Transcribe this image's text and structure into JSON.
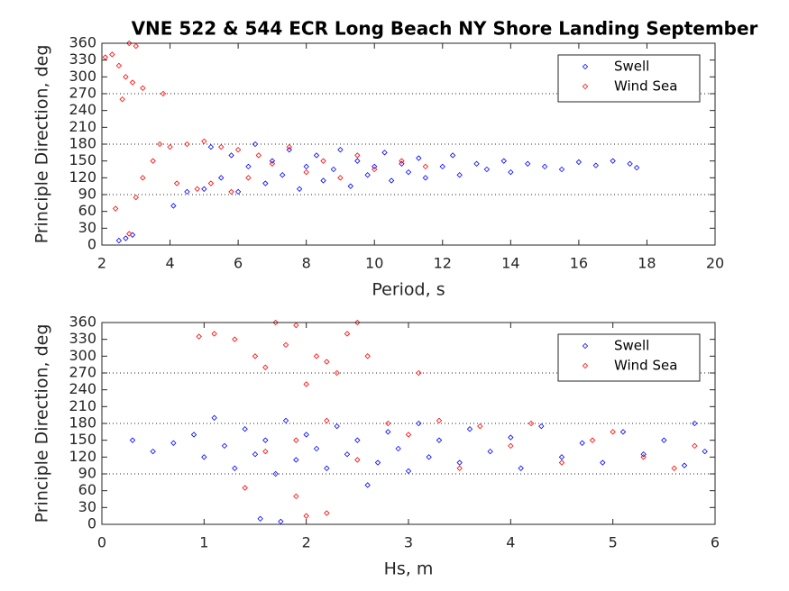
{
  "chart_data": [
    {
      "type": "scatter",
      "title": "VNE 522 & 544 ECR Long Beach NY Shore Landing September",
      "x_label": "Period, s",
      "y_label": "Principle Direction, deg",
      "xlim": [
        2,
        20
      ],
      "xticks": [
        2,
        4,
        6,
        8,
        10,
        12,
        14,
        16,
        18,
        20
      ],
      "ylim": [
        0,
        360
      ],
      "yticks": [
        0,
        30,
        60,
        90,
        120,
        150,
        180,
        210,
        240,
        270,
        300,
        330,
        360
      ],
      "hlines": [
        90,
        180,
        270
      ],
      "legend": "upper right",
      "marker": "diamond",
      "series": [
        {
          "name": "Swell",
          "color": "#0000ff",
          "x": [
            2.5,
            2.7,
            2.9,
            4.1,
            4.5,
            5,
            5.2,
            5.5,
            5.8,
            6,
            6.3,
            6.5,
            6.8,
            7,
            7.3,
            7.5,
            7.8,
            8,
            8.3,
            8.5,
            8.8,
            9,
            9.3,
            9.5,
            9.8,
            10,
            10.3,
            10.5,
            10.8,
            11,
            11.3,
            11.5,
            12,
            12.3,
            12.5,
            13,
            13.3,
            13.8,
            14,
            14.5,
            15,
            15.5,
            16,
            16.5,
            17,
            17.5,
            17.7
          ],
          "values": [
            8,
            12,
            18,
            70,
            95,
            100,
            175,
            120,
            160,
            95,
            140,
            180,
            110,
            150,
            125,
            170,
            100,
            140,
            160,
            115,
            135,
            170,
            105,
            150,
            125,
            140,
            165,
            115,
            145,
            130,
            155,
            120,
            140,
            160,
            125,
            145,
            135,
            150,
            130,
            145,
            140,
            135,
            148,
            142,
            150,
            145,
            138
          ]
        },
        {
          "name": "Wind Sea",
          "color": "#ff0000",
          "x": [
            2.1,
            2.3,
            2.5,
            2.7,
            2.8,
            3,
            2.6,
            2.9,
            3.2,
            3.8,
            2.4,
            2.8,
            3,
            3.2,
            3.5,
            3.7,
            4,
            4.2,
            4.5,
            4.8,
            5,
            5.2,
            5.5,
            5.8,
            6,
            6.3,
            6.6,
            7,
            7.5,
            8,
            8.5,
            9,
            9.5,
            10,
            10.8,
            11.5
          ],
          "values": [
            335,
            340,
            320,
            300,
            360,
            355,
            260,
            290,
            280,
            270,
            65,
            20,
            85,
            120,
            150,
            180,
            175,
            110,
            180,
            100,
            185,
            110,
            175,
            95,
            170,
            120,
            160,
            145,
            175,
            130,
            150,
            120,
            160,
            135,
            150,
            140
          ]
        }
      ]
    },
    {
      "type": "scatter",
      "x_label": "Hs, m",
      "y_label": "Principle Direction, deg",
      "xlim": [
        0,
        6
      ],
      "xticks": [
        0,
        1,
        2,
        3,
        4,
        5,
        6
      ],
      "ylim": [
        0,
        360
      ],
      "yticks": [
        0,
        30,
        60,
        90,
        120,
        150,
        180,
        210,
        240,
        270,
        300,
        330,
        360
      ],
      "hlines": [
        90,
        180,
        270
      ],
      "legend": "upper right",
      "marker": "diamond",
      "series": [
        {
          "name": "Swell",
          "color": "#0000ff",
          "x": [
            0.3,
            0.5,
            0.7,
            0.9,
            1,
            1.1,
            1.2,
            1.3,
            1.4,
            1.5,
            1.55,
            1.6,
            1.7,
            1.75,
            1.8,
            1.9,
            2,
            2.1,
            2.2,
            2.3,
            2.4,
            2.5,
            2.6,
            2.7,
            2.8,
            2.9,
            3,
            3.1,
            3.2,
            3.3,
            3.5,
            3.6,
            3.8,
            4,
            4.1,
            4.3,
            4.5,
            4.7,
            4.9,
            5.1,
            5.3,
            5.5,
            5.7,
            5.8,
            5.9
          ],
          "values": [
            150,
            130,
            145,
            160,
            120,
            190,
            140,
            100,
            170,
            125,
            10,
            150,
            90,
            5,
            185,
            115,
            160,
            135,
            100,
            175,
            125,
            150,
            70,
            110,
            165,
            135,
            95,
            180,
            120,
            150,
            110,
            170,
            130,
            155,
            100,
            175,
            120,
            145,
            110,
            165,
            125,
            150,
            105,
            180,
            130
          ]
        },
        {
          "name": "Wind Sea",
          "color": "#ff0000",
          "x": [
            0.95,
            1.1,
            1.3,
            1.5,
            1.6,
            1.7,
            1.8,
            1.9,
            2,
            2.1,
            2.2,
            2.3,
            2.4,
            2.5,
            2.6,
            3.1,
            1.4,
            1.9,
            2,
            2.2,
            1.6,
            1.9,
            2.2,
            2.5,
            2.8,
            3,
            3.3,
            3.5,
            3.7,
            4,
            4.2,
            4.5,
            4.8,
            5,
            5.3,
            5.6,
            5.8
          ],
          "values": [
            335,
            340,
            330,
            300,
            280,
            360,
            320,
            355,
            250,
            300,
            290,
            270,
            340,
            360,
            300,
            270,
            65,
            50,
            15,
            20,
            130,
            150,
            185,
            115,
            180,
            160,
            185,
            100,
            175,
            140,
            180,
            110,
            150,
            165,
            120,
            100,
            140
          ]
        }
      ]
    }
  ]
}
